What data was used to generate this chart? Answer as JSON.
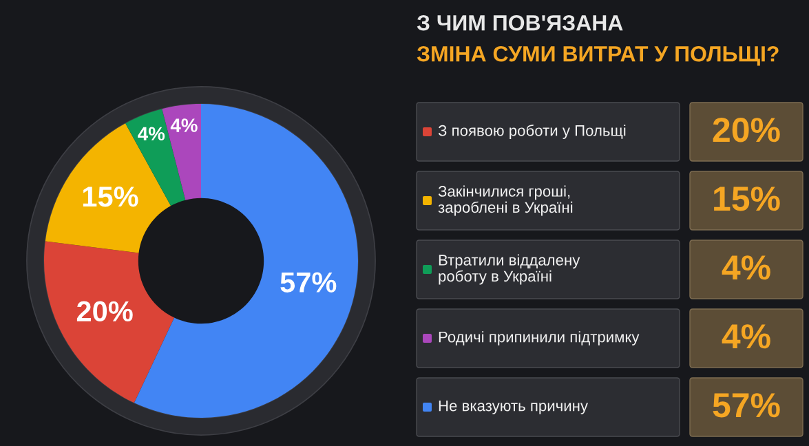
{
  "chart_data": {
    "type": "donut",
    "title": "З ЧИМ ПОВ'ЯЗАНА",
    "subtitle": "ЗМІНА СУМИ ВИТРАТ У ПОЛЬЩІ?",
    "categories": [
      "З появою роботи у Польщі",
      "Закінчилися гроші,\nзароблені в Україні",
      "Втратили віддалену\nроботу в Україні",
      "Родичі припинили підтримку",
      "Не вказують причину"
    ],
    "values": [
      20,
      15,
      4,
      4,
      57
    ],
    "value_labels": [
      "20%",
      "15%",
      "4%",
      "4%",
      "57%"
    ],
    "colors": [
      "#db4437",
      "#f4b400",
      "#0f9d58",
      "#ab47bc",
      "#4285f4"
    ],
    "legend": "right"
  }
}
